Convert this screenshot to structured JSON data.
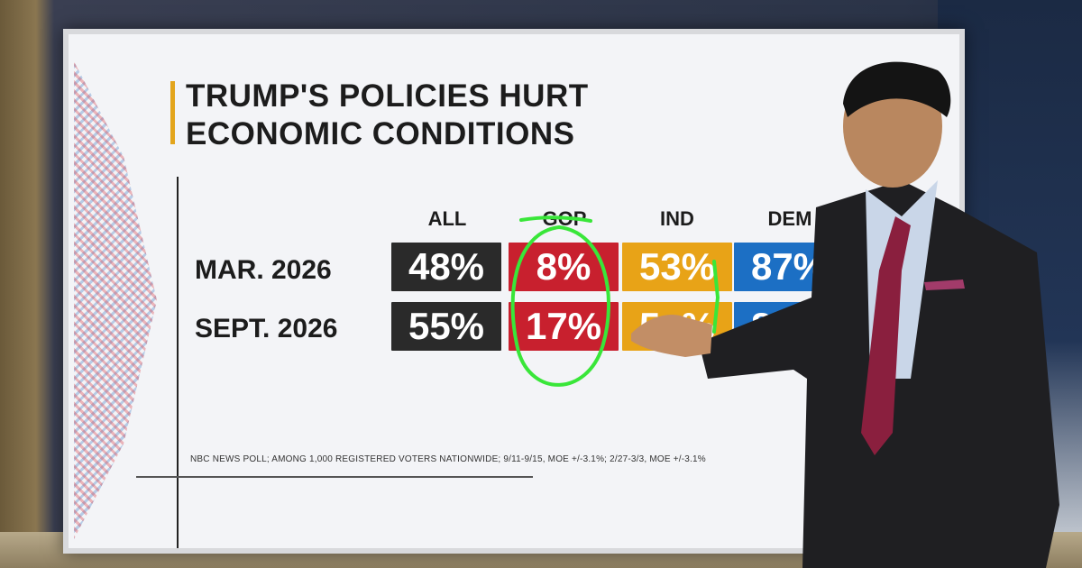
{
  "graphic": {
    "title_line1": "TRUMP'S POLICIES HURT",
    "title_line2": "ECONOMIC CONDITIONS",
    "columns": [
      "ALL",
      "GOP",
      "IND",
      "DEM"
    ],
    "rows": [
      {
        "label": "MAR. 2026",
        "values": [
          "48%",
          "8%",
          "53%",
          "87%"
        ]
      },
      {
        "label": "SEPT. 2026",
        "values": [
          "55%",
          "17%",
          "5_%",
          "89%"
        ]
      }
    ],
    "source": "NBC NEWS POLL; AMONG 1,000 REGISTERED VOTERS NATIONWIDE; 9/11-9/15, MOE +/-3.1%; 2/27-3/3, MOE +/-3.1%"
  },
  "colors": {
    "all": "#2a2a2a",
    "gop": "#c8202e",
    "ind": "#e8a317",
    "dem": "#1c6fc4",
    "annotation": "#39e639",
    "title_accent": "#e3a51c"
  },
  "annotations": [
    "circle-around-gop-column",
    "underline-gop-header",
    "vertical-mark-ind-column"
  ]
}
